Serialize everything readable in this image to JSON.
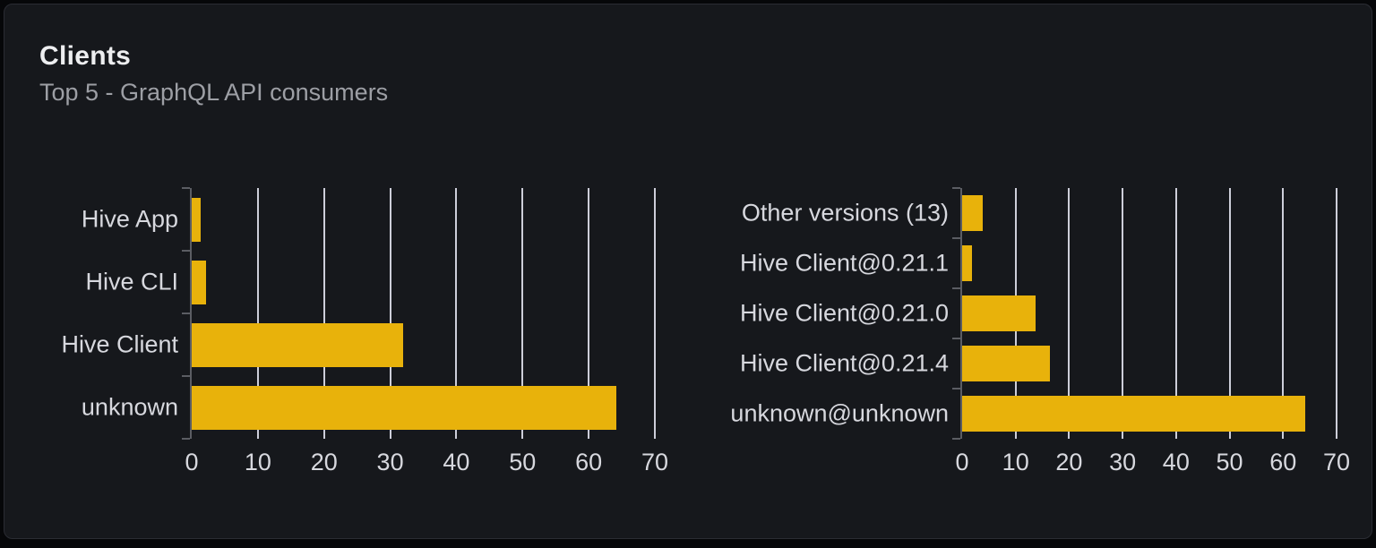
{
  "panel": {
    "title": "Clients",
    "subtitle": "Top 5 - GraphQL API consumers"
  },
  "colors": {
    "page_background": "#060709",
    "background": "#16181c",
    "panel_border": "#2a2c33",
    "bar": "#e8b20b",
    "grid": "#cdced9",
    "axis": "#5b5d63",
    "text": "#d7d8de",
    "title": "#edeef0",
    "subtitle": "#9d9fa5"
  },
  "chart_data": [
    {
      "type": "bar",
      "orientation": "horizontal",
      "title": "Clients (top 5)",
      "categories": [
        "Hive App",
        "Hive CLI",
        "Hive Client",
        "unknown"
      ],
      "values": [
        1.4,
        2.2,
        32,
        64.2
      ],
      "xlim": [
        0,
        70
      ],
      "xticks": [
        0,
        10,
        20,
        30,
        40,
        50,
        60,
        70
      ],
      "xlabel": "",
      "ylabel": "",
      "grid": true,
      "legend": false,
      "bar_color": "#e8b20b"
    },
    {
      "type": "bar",
      "orientation": "horizontal",
      "title": "Client versions (top 5)",
      "categories": [
        "Other versions (13)",
        "Hive Client@0.21.1",
        "Hive Client@0.21.0",
        "Hive Client@0.21.4",
        "unknown@unknown"
      ],
      "values": [
        3.9,
        1.8,
        13.7,
        16.4,
        64.1
      ],
      "xlim": [
        0,
        70
      ],
      "xticks": [
        0,
        10,
        20,
        30,
        40,
        50,
        60,
        70
      ],
      "xlabel": "",
      "ylabel": "",
      "grid": true,
      "legend": false,
      "bar_color": "#e8b20b"
    }
  ]
}
